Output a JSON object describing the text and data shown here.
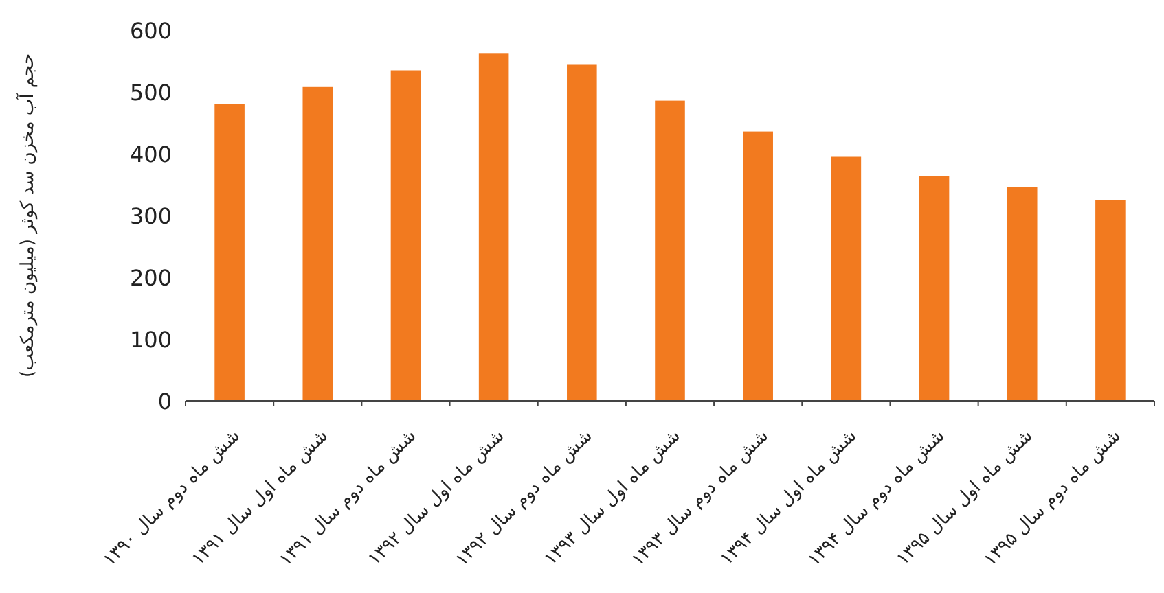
{
  "chart_data": {
    "type": "bar",
    "ylabel": "حجم آب مخزن سد کوثر (میلیون مترمکعب)",
    "categories": [
      "شش ماه دوم سال ۱۳۹۰",
      "شش ماه اول سال ۱۳۹۱",
      "شش ماه دوم سال ۱۳۹۱",
      "شش ماه اول سال ۱۳۹۲",
      "شش ماه دوم سال ۱۳۹۲",
      "شش ماه اول سال ۱۳۹۳",
      "شش ماه دوم سال ۱۳۹۳",
      "شش ماه اول سال ۱۳۹۴",
      "شش ماه دوم سال ۱۳۹۴",
      "شش ماه اول سال ۱۳۹۵",
      "شش ماه دوم سال ۱۳۹۵"
    ],
    "values": [
      480,
      508,
      535,
      563,
      545,
      486,
      436,
      395,
      364,
      346,
      325
    ],
    "color": "#f27a1f",
    "ylim": [
      0,
      600
    ],
    "yticks": [
      0,
      100,
      200,
      300,
      400,
      500,
      600
    ],
    "grid": false
  }
}
